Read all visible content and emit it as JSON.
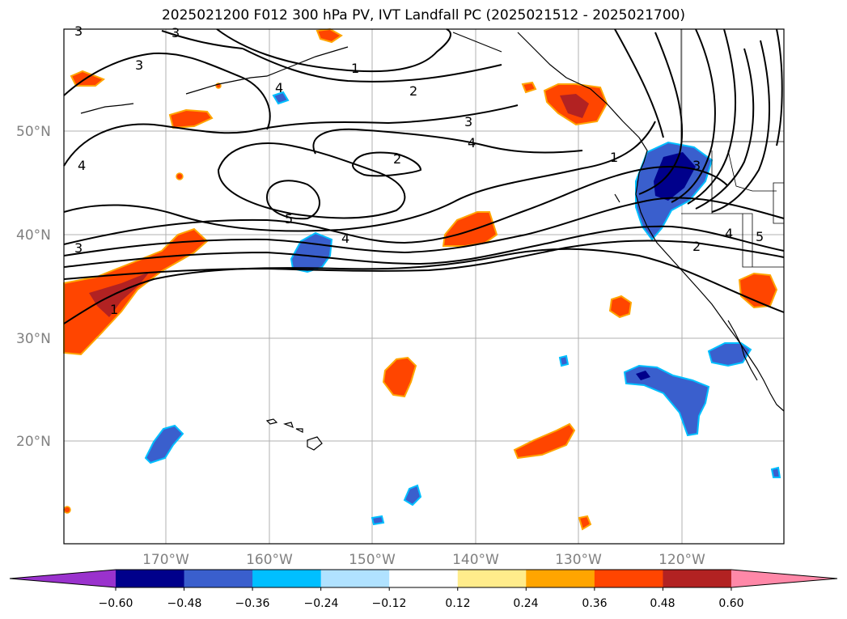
{
  "title": "2025021200 F012 300 hPa PV, IVT Landfall PC (2025021512 - 2025021700)",
  "map": {
    "lat_labels": [
      "50°N",
      "40°N",
      "30°N",
      "20°N"
    ],
    "lon_labels": [
      "170°W",
      "160°W",
      "150°W",
      "140°W",
      "130°W",
      "120°W"
    ],
    "pv_contour_labels": [
      "1",
      "2",
      "3",
      "4",
      "5"
    ]
  },
  "colorbar": {
    "ticks": [
      "−0.60",
      "−0.48",
      "−0.36",
      "−0.24",
      "−0.12",
      "0.12",
      "0.24",
      "0.36",
      "0.48",
      "0.60"
    ],
    "colors": [
      "#9a32cd",
      "#00008b",
      "#3a5fcd",
      "#00bfff",
      "#b0e2ff",
      "#ffffff",
      "#ffec8b",
      "#ffa500",
      "#ff4500",
      "#b22222",
      "#ff88a8"
    ]
  },
  "fill_colors": {
    "neg_light": "#00bfff",
    "neg_mid": "#3a5fcd",
    "neg_dark": "#00008b",
    "pos_light": "#ffa500",
    "pos_mid": "#ff4500",
    "pos_dark": "#b22222"
  }
}
